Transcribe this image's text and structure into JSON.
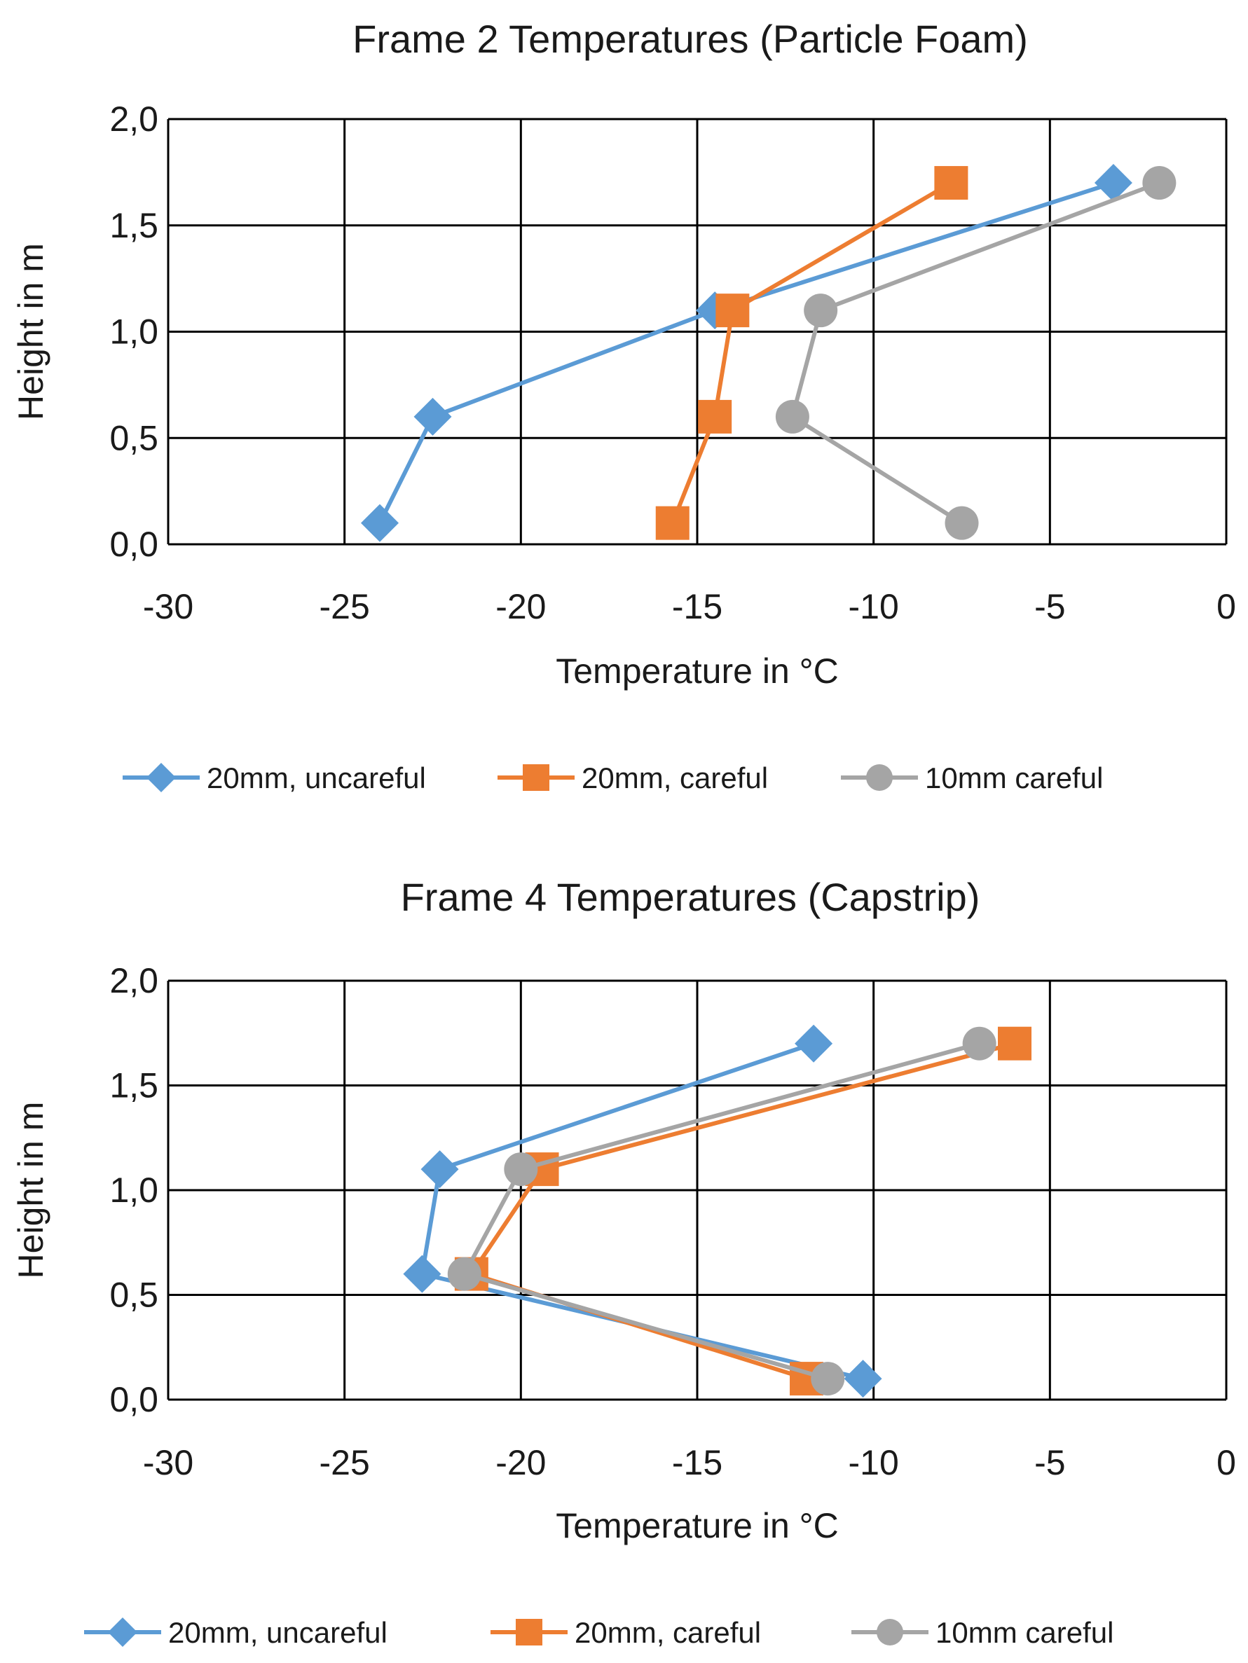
{
  "colors": {
    "series_blue": "#5b9bd5",
    "series_orange": "#ed7d31",
    "series_gray": "#a5a5a5",
    "grid": "#000000",
    "text": "#1a1a1a"
  },
  "chart_data": [
    {
      "type": "line",
      "title": "Frame 2 Temperatures (Particle Foam)",
      "xlabel": "Temperature in °C",
      "ylabel": "Height in m",
      "xlim": [
        -30,
        0
      ],
      "ylim": [
        0,
        2
      ],
      "x_ticks": [
        -30,
        -25,
        -20,
        -15,
        -10,
        -5,
        0
      ],
      "x_tick_labels": [
        "-30",
        "-25",
        "-20",
        "-15",
        "-10",
        "-5",
        "0"
      ],
      "y_ticks": [
        0,
        0.5,
        1,
        1.5,
        2
      ],
      "y_tick_labels": [
        "0,0",
        "0,5",
        "1,0",
        "1,5",
        "2,0"
      ],
      "grid": true,
      "legend_position": "bottom",
      "series": [
        {
          "name": "20mm, uncareful",
          "marker": "diamond",
          "color": "#5b9bd5",
          "points": [
            [
              -24.0,
              0.1
            ],
            [
              -22.5,
              0.6
            ],
            [
              -14.5,
              1.1
            ],
            [
              -3.2,
              1.7
            ]
          ]
        },
        {
          "name": "20mm, careful",
          "marker": "square",
          "color": "#ed7d31",
          "points": [
            [
              -15.7,
              0.1
            ],
            [
              -14.5,
              0.6
            ],
            [
              -14.0,
              1.1
            ],
            [
              -7.8,
              1.7
            ]
          ]
        },
        {
          "name": "10mm careful",
          "marker": "circle",
          "color": "#a5a5a5",
          "points": [
            [
              -7.5,
              0.1
            ],
            [
              -12.3,
              0.6
            ],
            [
              -11.5,
              1.1
            ],
            [
              -1.9,
              1.7
            ]
          ]
        }
      ]
    },
    {
      "type": "line",
      "title": "Frame 4 Temperatures (Capstrip)",
      "xlabel": "Temperature in °C",
      "ylabel": "Height in m",
      "xlim": [
        -30,
        0
      ],
      "ylim": [
        0,
        2
      ],
      "x_ticks": [
        -30,
        -25,
        -20,
        -15,
        -10,
        -5,
        0
      ],
      "x_tick_labels": [
        "-30",
        "-25",
        "-20",
        "-15",
        "-10",
        "-5",
        "0"
      ],
      "y_ticks": [
        0,
        0.5,
        1,
        1.5,
        2
      ],
      "y_tick_labels": [
        "0,0",
        "0,5",
        "1,0",
        "1,5",
        "2,0"
      ],
      "grid": true,
      "legend_position": "bottom",
      "series": [
        {
          "name": "20mm, uncareful",
          "marker": "diamond",
          "color": "#5b9bd5",
          "points": [
            [
              -10.3,
              0.1
            ],
            [
              -22.8,
              0.6
            ],
            [
              -22.3,
              1.1
            ],
            [
              -11.7,
              1.7
            ]
          ]
        },
        {
          "name": "20mm, careful",
          "marker": "square",
          "color": "#ed7d31",
          "points": [
            [
              -11.9,
              0.1
            ],
            [
              -21.4,
              0.6
            ],
            [
              -19.4,
              1.1
            ],
            [
              -6.0,
              1.7
            ]
          ]
        },
        {
          "name": "10mm careful",
          "marker": "circle",
          "color": "#a5a5a5",
          "points": [
            [
              -11.3,
              0.1
            ],
            [
              -21.6,
              0.6
            ],
            [
              -20.0,
              1.1
            ],
            [
              -7.0,
              1.7
            ]
          ]
        }
      ]
    }
  ]
}
